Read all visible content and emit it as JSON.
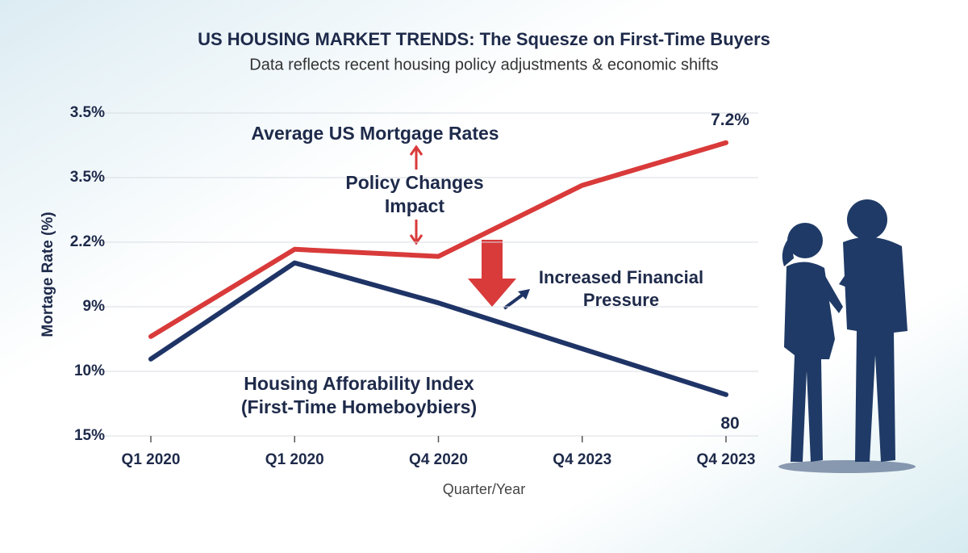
{
  "chart_data": {
    "type": "line",
    "title": "US HOUSING MARKET TRENDS: The Squesze on First-Time Buyers",
    "subtitle": "Data reflects recent housing policy adjustments & economic shifts",
    "x_label": "Quarter/Year",
    "y_label": "Mortage Rate (%)",
    "categories": [
      "Q1 2020",
      "Q1 2020",
      "Q4 2020",
      "Q4 2023",
      "Q4 2023"
    ],
    "ylim": [
      0,
      5
    ],
    "yticks": [
      {
        "value": 0,
        "label": "15%"
      },
      {
        "value": 1,
        "label": "10%"
      },
      {
        "value": 2,
        "label": "9%"
      },
      {
        "value": 3,
        "label": "2.2%"
      },
      {
        "value": 4,
        "label": "3.5%"
      },
      {
        "value": 5,
        "label": "3.5%"
      }
    ],
    "grid": true,
    "series": [
      {
        "name": "Average US Mortgage Rates",
        "color": "#d93a3a",
        "values": [
          1.54,
          2.89,
          2.78,
          3.88,
          4.54
        ]
      },
      {
        "name": "Housing Afforability Index\n(First-Time Homeboybiers)",
        "color": "#1f3466",
        "values": [
          1.19,
          2.68,
          2.06,
          1.35,
          0.64
        ]
      }
    ],
    "annotations": [
      "7.2%",
      "80",
      "Policy Changes\nImpact",
      "Increased Financial\nPressure"
    ]
  }
}
